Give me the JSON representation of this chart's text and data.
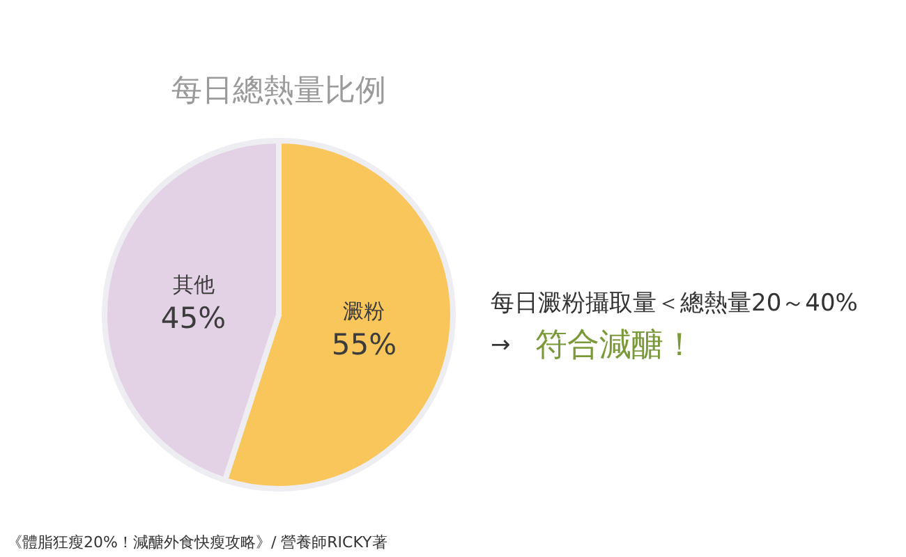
{
  "chart_data": {
    "type": "pie",
    "title": "每日總熱量比例",
    "categories": [
      "澱粉",
      "其他"
    ],
    "values": [
      55,
      45
    ],
    "colors": [
      "#f8c65a",
      "#e3d1e5"
    ],
    "value_labels": [
      "55%",
      "45%"
    ],
    "annotations": [
      "每日澱粉攝取量＜總熱量20～40%",
      "→",
      "符合減醣！",
      "《體脂狂瘦20%！減醣外食快瘦攻略》/ 營養師RICKY著"
    ]
  }
}
